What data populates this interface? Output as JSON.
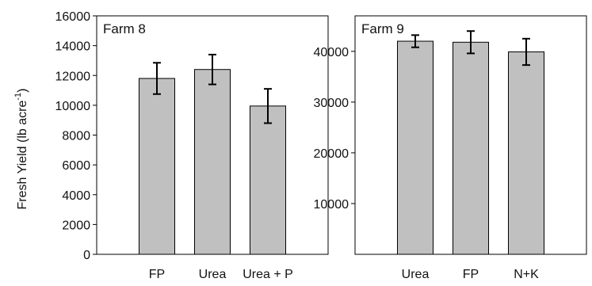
{
  "y_axis_label": "Fresh Yield (lb acre",
  "y_axis_label_sup": "-1",
  "y_axis_label_end": ")",
  "colors": {
    "bar_fill": "#c0c0c0",
    "outline": "#000000"
  },
  "chart_data": [
    {
      "type": "bar",
      "title": "Farm 8",
      "categories": [
        "FP",
        "Urea",
        "Urea + P"
      ],
      "values": [
        11800,
        12400,
        9950
      ],
      "error": [
        1050,
        1000,
        1150
      ],
      "ylim": [
        0,
        16000
      ],
      "yticks": [
        0,
        2000,
        4000,
        6000,
        8000,
        10000,
        12000,
        14000,
        16000
      ],
      "ylabel": "Fresh Yield (lb acre-1)",
      "grid": false
    },
    {
      "type": "bar",
      "title": "Farm 9",
      "categories": [
        "Urea",
        "FP",
        "N+K"
      ],
      "values": [
        42000,
        41800,
        39900
      ],
      "error": [
        1200,
        2200,
        2600
      ],
      "ylim": [
        0,
        47000
      ],
      "yticks": [
        10000,
        20000,
        30000,
        40000
      ],
      "ylabel": "",
      "grid": false
    }
  ]
}
